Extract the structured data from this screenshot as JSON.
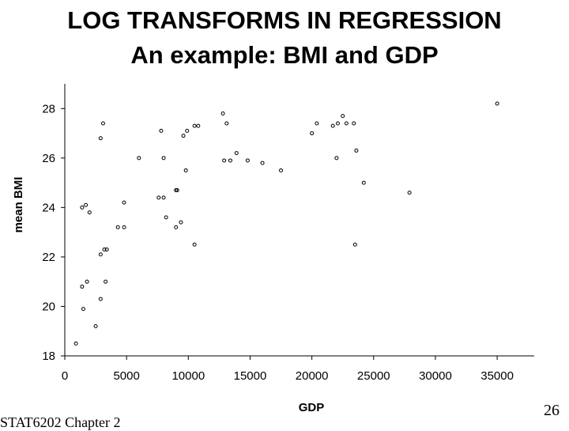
{
  "slide": {
    "title_line1": "LOG TRANSFORMS IN REGRESSION",
    "title_line2": "An example: BMI and GDP",
    "footer_left": "STAT6202 Chapter 2",
    "page_number": "26"
  },
  "chart_data": {
    "type": "scatter",
    "xlabel": "GDP",
    "ylabel": "mean BMI",
    "xlim": [
      0,
      38000
    ],
    "ylim": [
      18,
      29
    ],
    "xticks": [
      0,
      5000,
      10000,
      15000,
      20000,
      25000,
      30000,
      35000
    ],
    "yticks": [
      18,
      20,
      22,
      24,
      26,
      28
    ],
    "grid": false,
    "legend": "none",
    "marker_color": "#000000",
    "points": [
      [
        900,
        18.5
      ],
      [
        2500,
        19.2
      ],
      [
        1500,
        19.9
      ],
      [
        2900,
        20.3
      ],
      [
        1400,
        20.8
      ],
      [
        1800,
        21.0
      ],
      [
        3300,
        21.0
      ],
      [
        2900,
        22.1
      ],
      [
        3200,
        22.3
      ],
      [
        3400,
        22.3
      ],
      [
        4300,
        23.2
      ],
      [
        4800,
        23.2
      ],
      [
        9000,
        23.2
      ],
      [
        9400,
        23.4
      ],
      [
        8200,
        23.6
      ],
      [
        1400,
        24.0
      ],
      [
        1700,
        24.1
      ],
      [
        2000,
        23.8
      ],
      [
        4800,
        24.2
      ],
      [
        7600,
        24.4
      ],
      [
        8000,
        24.4
      ],
      [
        9000,
        24.7
      ],
      [
        9100,
        24.7
      ],
      [
        6000,
        26.0
      ],
      [
        8000,
        26.0
      ],
      [
        9800,
        25.5
      ],
      [
        2900,
        26.8
      ],
      [
        3100,
        27.4
      ],
      [
        7800,
        27.1
      ],
      [
        9600,
        26.9
      ],
      [
        9900,
        27.1
      ],
      [
        10500,
        27.3
      ],
      [
        10800,
        27.3
      ],
      [
        12800,
        27.8
      ],
      [
        13100,
        27.4
      ],
      [
        10500,
        22.5
      ],
      [
        12900,
        25.9
      ],
      [
        13400,
        25.9
      ],
      [
        13900,
        26.2
      ],
      [
        14800,
        25.9
      ],
      [
        16000,
        25.8
      ],
      [
        17500,
        25.5
      ],
      [
        20000,
        27.0
      ],
      [
        20400,
        27.4
      ],
      [
        21700,
        27.3
      ],
      [
        22100,
        27.4
      ],
      [
        22500,
        27.7
      ],
      [
        22800,
        27.4
      ],
      [
        23400,
        27.4
      ],
      [
        22000,
        26.0
      ],
      [
        23600,
        26.3
      ],
      [
        24200,
        25.0
      ],
      [
        23500,
        22.5
      ],
      [
        27900,
        24.6
      ],
      [
        35000,
        28.2
      ]
    ]
  }
}
